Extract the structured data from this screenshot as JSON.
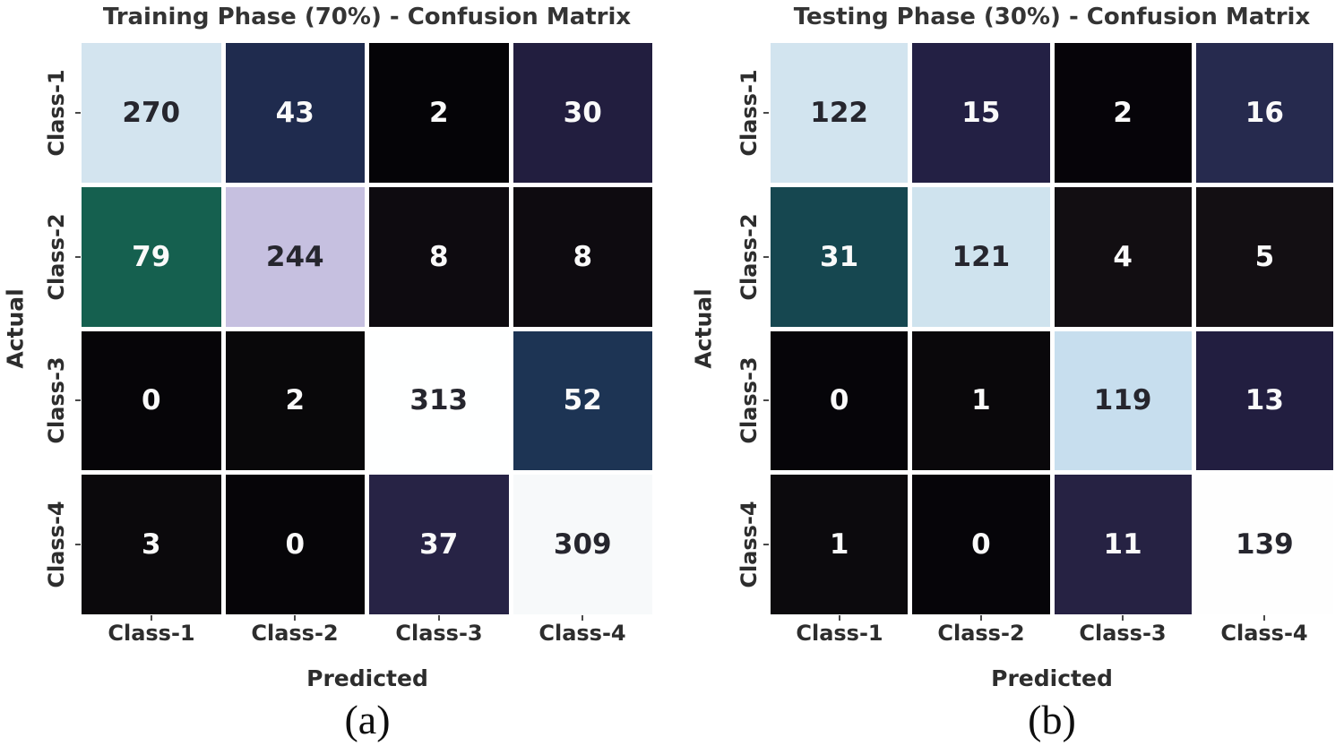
{
  "figure": {
    "background": "#ffffff"
  },
  "colors": {
    "title_text": "#343434",
    "axis_text": "#2d2d2d",
    "annot_dark": "#26262e",
    "annot_light": "#fafafa",
    "tick_mark": "#4a4a4a"
  },
  "panels": [
    {
      "title": "Training Phase (70%) - Confusion Matrix",
      "xlabel": "Predicted",
      "ylabel": "Actual",
      "caption": "(a)",
      "x_ticks": [
        "Class-1",
        "Class-2",
        "Class-3",
        "Class-4"
      ],
      "y_ticks": [
        "Class-1",
        "Class-2",
        "Class-3",
        "Class-4"
      ],
      "cell_colors": [
        [
          "#d3e4ef",
          "#1f2b4e",
          "#050407",
          "#221e3f"
        ],
        [
          "#15604f",
          "#c6c0e0",
          "#0e0b10",
          "#0e0b10"
        ],
        [
          "#060508",
          "#09080a",
          "#feffff",
          "#1d3454"
        ],
        [
          "#0b090c",
          "#060508",
          "#272345",
          "#f7f9fa"
        ]
      ]
    },
    {
      "title": "Testing Phase (30%) - Confusion Matrix",
      "xlabel": "Predicted",
      "ylabel": "Actual",
      "caption": "(b)",
      "x_ticks": [
        "Class-1",
        "Class-2",
        "Class-3",
        "Class-4"
      ],
      "y_ticks": [
        "Class-1",
        "Class-2",
        "Class-3",
        "Class-4"
      ],
      "cell_colors": [
        [
          "#d2e4ef",
          "#232044",
          "#060409",
          "#262a4e"
        ],
        [
          "#164750",
          "#cfe3ee",
          "#120e12",
          "#130f13"
        ],
        [
          "#060509",
          "#0a080b",
          "#c7deee",
          "#221e40"
        ],
        [
          "#0c0a0d",
          "#060509",
          "#262243",
          "#fefefe"
        ]
      ]
    }
  ],
  "chart_data": [
    {
      "type": "heatmap",
      "title": "Training Phase (70%) - Confusion Matrix",
      "xlabel": "Predicted",
      "ylabel": "Actual",
      "x_categories": [
        "Class-1",
        "Class-2",
        "Class-3",
        "Class-4"
      ],
      "y_categories": [
        "Class-1",
        "Class-2",
        "Class-3",
        "Class-4"
      ],
      "values": [
        [
          270,
          43,
          2,
          30
        ],
        [
          79,
          244,
          8,
          8
        ],
        [
          0,
          2,
          313,
          52
        ],
        [
          3,
          0,
          37,
          309
        ]
      ]
    },
    {
      "type": "heatmap",
      "title": "Testing Phase (30%) - Confusion Matrix",
      "xlabel": "Predicted",
      "ylabel": "Actual",
      "x_categories": [
        "Class-1",
        "Class-2",
        "Class-3",
        "Class-4"
      ],
      "y_categories": [
        "Class-1",
        "Class-2",
        "Class-3",
        "Class-4"
      ],
      "values": [
        [
          122,
          15,
          2,
          16
        ],
        [
          31,
          121,
          4,
          5
        ],
        [
          0,
          1,
          119,
          13
        ],
        [
          1,
          0,
          11,
          139
        ]
      ]
    }
  ]
}
